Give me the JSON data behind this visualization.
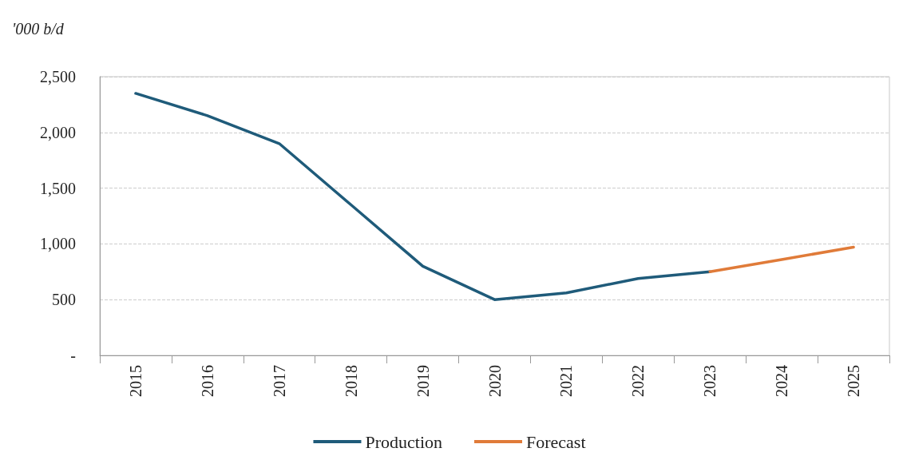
{
  "chart_data": {
    "type": "line",
    "ylabel": "'000 b/d",
    "categories": [
      "2015",
      "2016",
      "2017",
      "2018",
      "2019",
      "2020",
      "2021",
      "2022",
      "2023",
      "2024",
      "2025"
    ],
    "series": [
      {
        "name": "Production",
        "color": "#1f5b7a",
        "values": [
          2350,
          2150,
          1900,
          1350,
          800,
          500,
          560,
          690,
          750,
          null,
          null
        ]
      },
      {
        "name": "Forecast",
        "color": "#e07b39",
        "values": [
          null,
          null,
          null,
          null,
          null,
          null,
          null,
          null,
          750,
          860,
          970
        ]
      }
    ],
    "ylim": [
      0,
      2500
    ],
    "yticks": [
      {
        "value": 0,
        "label": "-"
      },
      {
        "value": 500,
        "label": "500"
      },
      {
        "value": 1000,
        "label": "1,000"
      },
      {
        "value": 1500,
        "label": "1,500"
      },
      {
        "value": 2000,
        "label": "2,000"
      },
      {
        "value": 2500,
        "label": "2,500"
      }
    ],
    "grid": "y",
    "legend": "bottom",
    "marker": "none",
    "line_style": "solid"
  }
}
